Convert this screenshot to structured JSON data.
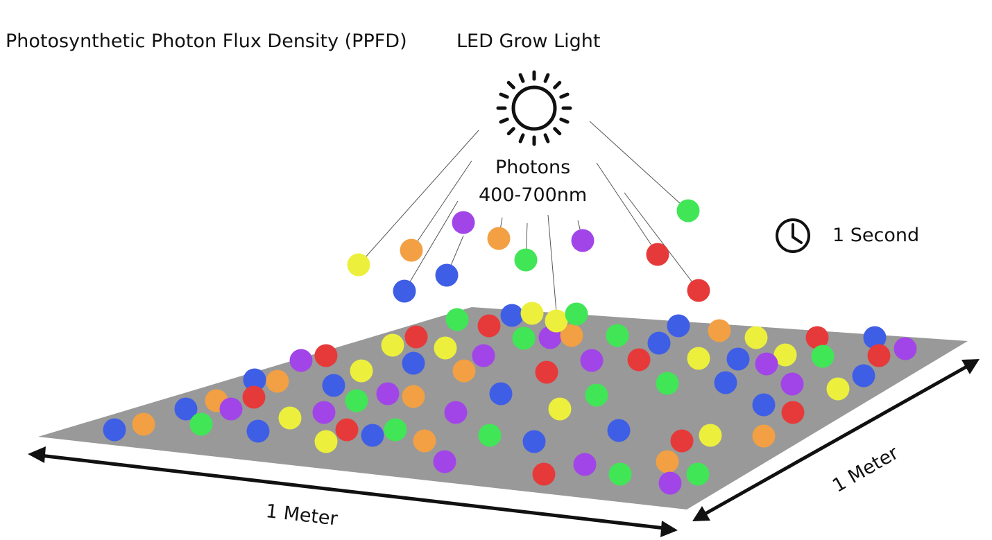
{
  "title": "Photosynthetic Photon Flux Density (PPFD)",
  "light_label": "LED Grow Light",
  "photons_label": "Photons",
  "wavelength_label": "400-700nm",
  "time_label": "1 Second",
  "width_label": "1 Meter",
  "depth_label": "1 Meter",
  "icons": {
    "light": "sun-icon",
    "time": "clock-icon"
  },
  "colors": {
    "surface": "#999999",
    "blue": "#3f5ee6",
    "orange": "#f2a043",
    "green": "#40e656",
    "red": "#e63a3a",
    "purple": "#a145e8",
    "yellow": "#ecf03c"
  }
}
